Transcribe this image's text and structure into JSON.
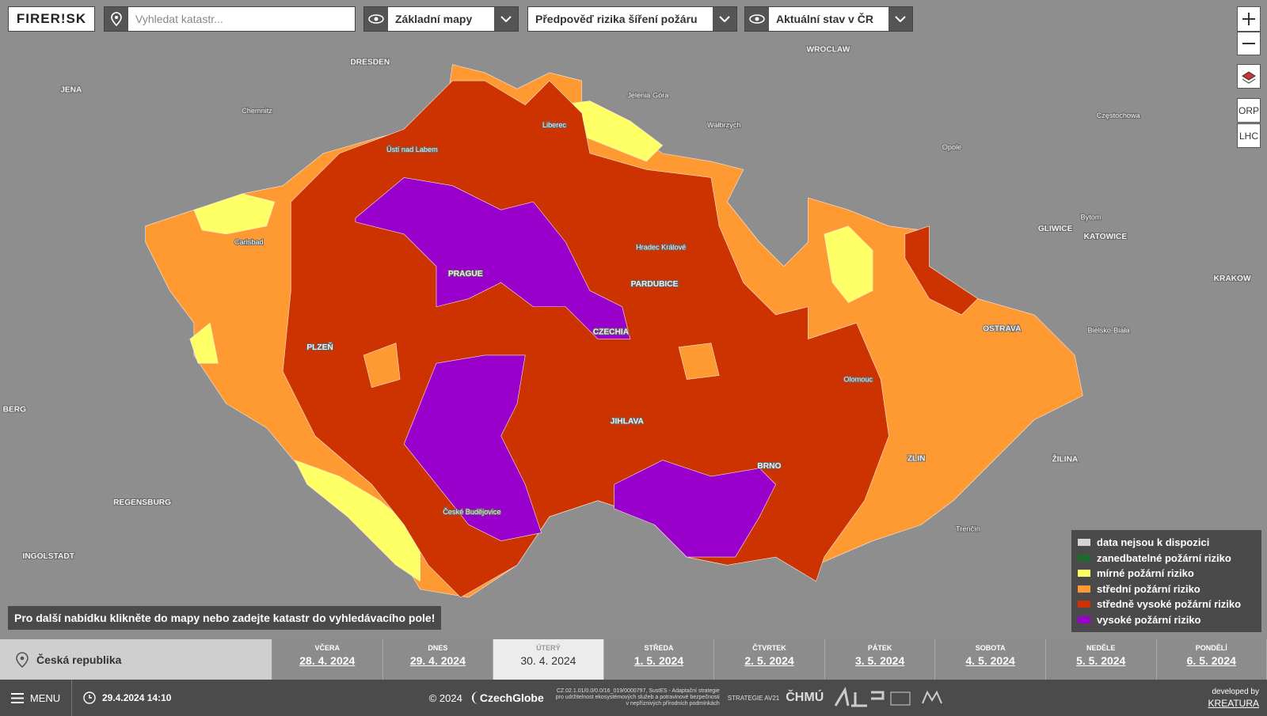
{
  "header": {
    "logo": "FIRER!SK",
    "search_placeholder": "Vyhledat katastr...",
    "basemap": "Základní mapy",
    "layer": "Předpověď rizika šíření požáru",
    "status": "Aktuální stav v ČR"
  },
  "map_controls": [
    "ORP",
    "LHC"
  ],
  "map_labels": [
    "DRESDEN",
    "JENA",
    "Chemnitz",
    "Ústí nad Labem",
    "Liberec",
    "Jelenia Góra",
    "WROCLAW",
    "Wałbrzych",
    "Opole",
    "Częstochowa",
    "Carlsbad",
    "PRAGUE",
    "Hradec Králové",
    "PARDUBICE",
    "CZECHIA",
    "PLZEŇ",
    "GLIWICE",
    "KATOWICE",
    "Bytom",
    "KRAKOW",
    "OSTRAVA",
    "Bielsko-Biała",
    "Olomouc",
    "JIHLAVA",
    "ZLIN",
    "ŽILINA",
    "BRNO",
    "Trenčín",
    "České Budějovice",
    "REGENSBURG",
    "INGOLSTADT",
    "BERG"
  ],
  "hint": "Pro další nabídku klikněte do mapy nebo zadejte katastr do vyhledávacího pole!",
  "legend": [
    {
      "label": "data nejsou k dispozici",
      "color": "#d4d4d4"
    },
    {
      "label": "zanedbatelné požární riziko",
      "color": "#1d6b2c"
    },
    {
      "label": "mírné požární riziko",
      "color": "#ffff66"
    },
    {
      "label": "střední požární riziko",
      "color": "#ff9a33"
    },
    {
      "label": "středně vysoké požární riziko",
      "color": "#cc3300"
    },
    {
      "label": "vysoké požární riziko",
      "color": "#9a00cc"
    }
  ],
  "location": "Česká republika",
  "days": [
    {
      "weekday": "VČERA",
      "date": "28. 4. 2024"
    },
    {
      "weekday": "DNES",
      "date": "29. 4. 2024"
    },
    {
      "weekday": "ÚTERÝ",
      "date": "30. 4. 2024",
      "selected": true
    },
    {
      "weekday": "STŘEDA",
      "date": "1. 5. 2024"
    },
    {
      "weekday": "ČTVRTEK",
      "date": "2. 5. 2024"
    },
    {
      "weekday": "PÁTEK",
      "date": "3. 5. 2024"
    },
    {
      "weekday": "SOBOTA",
      "date": "4. 5. 2024"
    },
    {
      "weekday": "NEDĚLE",
      "date": "5. 5. 2024"
    },
    {
      "weekday": "PONDĚLÍ",
      "date": "6. 5. 2024"
    }
  ],
  "footer": {
    "menu": "MENU",
    "timestamp": "29.4.2024 14:10",
    "copyright": "© 2024",
    "brand": "CzechGlobe",
    "project": "CZ.02.1.01/0.0/0.0/16_019/0000797, SustES - Adaptační strategie pro udržitelnost ekosystémových služeb a potravinové bezpečnosti v nepříznivých přírodních podmínkách",
    "partners": [
      "STRATEGIE AV21",
      "ČHMÚ"
    ],
    "developed_by": "developed by",
    "developer": "KREATURA"
  }
}
